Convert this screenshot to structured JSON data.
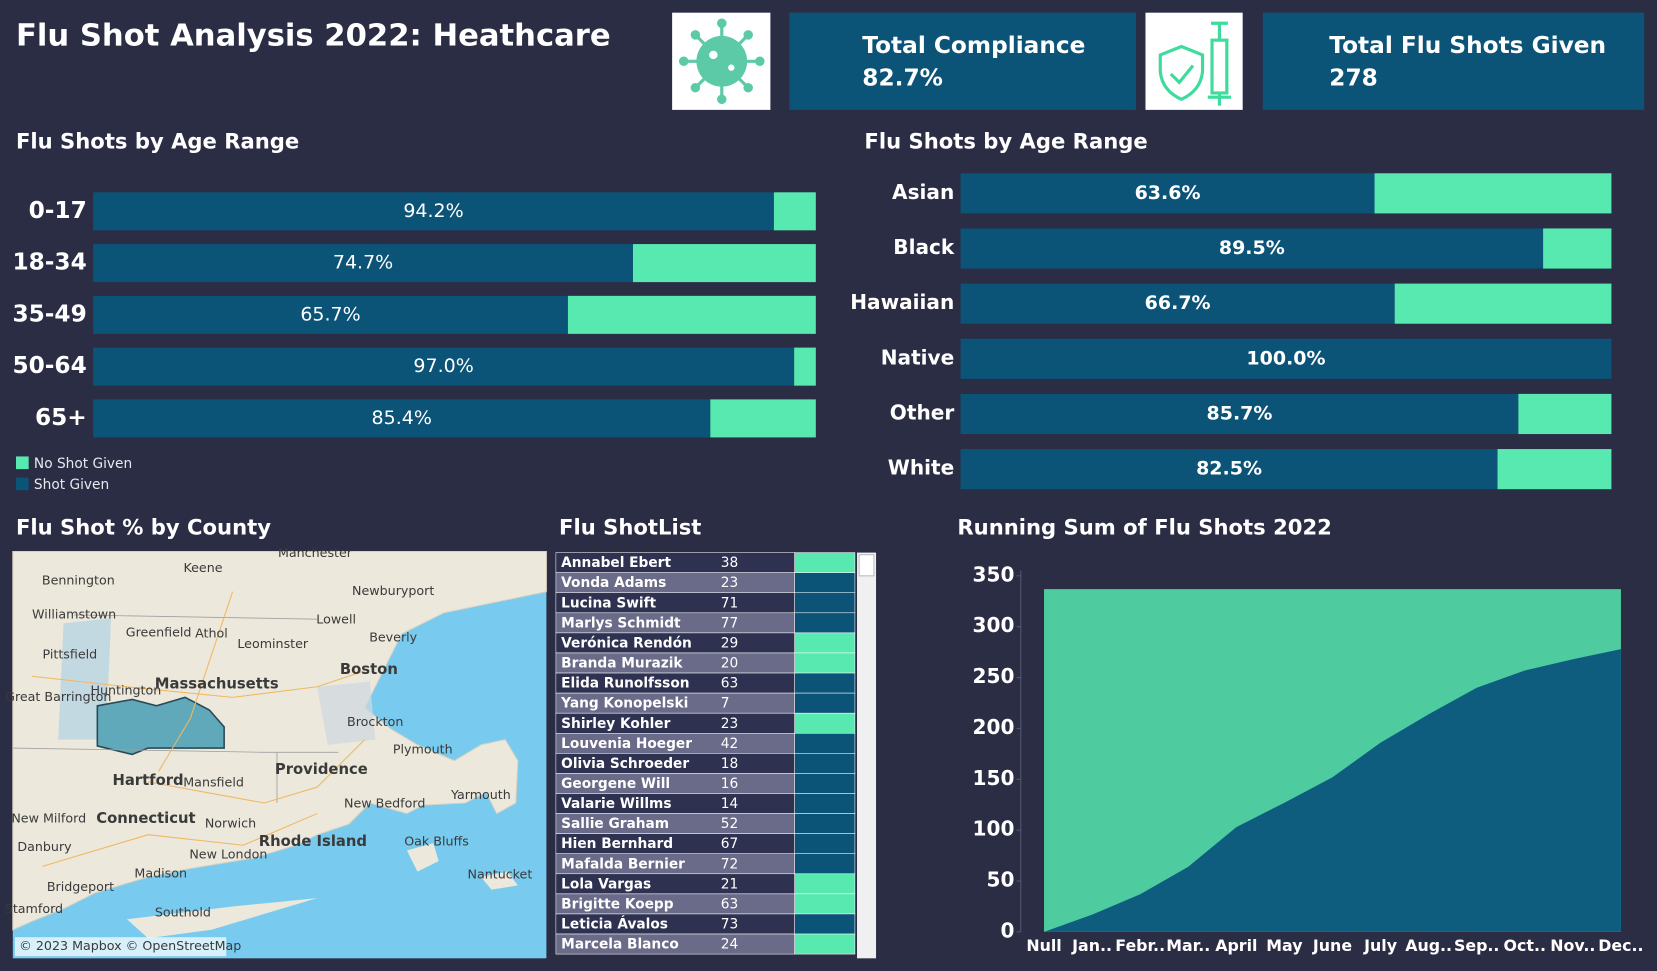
{
  "header": {
    "title": "Flu Shot Analysis 2022: Heathcare"
  },
  "kpis": [
    {
      "label": "Total Compliance",
      "value": "82.7%"
    },
    {
      "label": "Total Flu Shots Given",
      "value": "278"
    }
  ],
  "chart_data": [
    {
      "type": "bar",
      "orientation": "horizontal",
      "stacked": true,
      "title": "Flu Shots by Age Range",
      "categories": [
        "0-17",
        "18-34",
        "35-49",
        "50-64",
        "65+"
      ],
      "series": [
        {
          "name": "Shot Given",
          "color": "#0b5377",
          "values": [
            94.2,
            74.7,
            65.7,
            97.0,
            85.4
          ],
          "value_labels": [
            "94.2%",
            "74.7%",
            "65.7%",
            "97.0%",
            "85.4%"
          ]
        },
        {
          "name": "No Shot Given",
          "color": "#57e9b0",
          "values": [
            5.8,
            25.3,
            34.3,
            3.0,
            14.6
          ]
        }
      ],
      "xlim": [
        0,
        100
      ],
      "legend": "bottom-left"
    },
    {
      "type": "bar",
      "orientation": "horizontal",
      "stacked": true,
      "title": "Flu Shots by Age Range",
      "categories": [
        "Asian",
        "Black",
        "Hawaiian",
        "Native",
        "Other",
        "White"
      ],
      "series": [
        {
          "color": "#0b5377",
          "values": [
            63.6,
            89.5,
            66.7,
            100.0,
            85.7,
            82.5
          ],
          "value_labels": [
            "63.6%",
            "89.5%",
            "66.7%",
            "100.0%",
            "85.7%",
            "82.5%"
          ]
        },
        {
          "color": "#57e9b0",
          "values": [
            36.4,
            10.5,
            33.3,
            0,
            14.3,
            17.5
          ]
        }
      ],
      "xlim": [
        0,
        100
      ]
    },
    {
      "type": "area",
      "title": "Running Sum of Flu Shots 2022",
      "categories": [
        "Null",
        "Jan..",
        "Febr..",
        "Mar..",
        "April",
        "May",
        "June",
        "July",
        "Aug..",
        "Sep..",
        "Oct..",
        "Nov..",
        "Dec.."
      ],
      "series": [
        {
          "color": "#4ecc9f",
          "values": [
            337,
            337,
            337,
            337,
            337,
            337,
            337,
            337,
            337,
            337,
            337,
            337,
            337
          ]
        },
        {
          "color": "#0f5d7e",
          "values": [
            0,
            17,
            37,
            64,
            103,
            127,
            152,
            186,
            214,
            240,
            257,
            268,
            278
          ]
        }
      ],
      "ylim": [
        0,
        350
      ],
      "yticks": [
        0,
        50,
        100,
        150,
        200,
        250,
        300,
        350
      ]
    }
  ],
  "map": {
    "title": "Flu Shot % by County",
    "labels": [
      "Manchester",
      "Keene",
      "Bennington",
      "Newburyport",
      "Williamstown",
      "Lowell",
      "Greenfield",
      "Athol",
      "Leominster",
      "Beverly",
      "Pittsfield",
      "Boston",
      "Huntington",
      "Massachusetts",
      "Great Barrington",
      "Brockton",
      "Plymouth",
      "Providence",
      "Hartford",
      "Mansfield",
      "Yarmouth",
      "New Bedford",
      "New Milford",
      "Connecticut",
      "Norwich",
      "Rhode Island",
      "Oak Bluffs",
      "Danbury",
      "New London",
      "Nantucket",
      "Madison",
      "Bridgeport",
      "Southold",
      "Stamford"
    ],
    "attribution": "© 2023 Mapbox © OpenStreetMap"
  },
  "table": {
    "title": "Flu ShotList",
    "rows": [
      [
        "Annabel Ebert",
        38
      ],
      [
        "Vonda Adams",
        23
      ],
      [
        "Lucina Swift",
        71
      ],
      [
        "Marlys Schmidt",
        77
      ],
      [
        "Verónica Rendón",
        29
      ],
      [
        "Branda Murazik",
        20
      ],
      [
        "Elida Runolfsson",
        63
      ],
      [
        "Yang Konopelski",
        7
      ],
      [
        "Shirley Kohler",
        23
      ],
      [
        "Louvenia Hoeger",
        42
      ],
      [
        "Olivia Schroeder",
        18
      ],
      [
        "Georgene Will",
        16
      ],
      [
        "Valarie Willms",
        14
      ],
      [
        "Sallie Graham",
        52
      ],
      [
        "Hien Bernhard",
        67
      ],
      [
        "Mafalda Bernier",
        72
      ],
      [
        "Lola Vargas",
        21
      ],
      [
        "Brigitte Koepp",
        63
      ],
      [
        "Leticia Ávalos",
        73
      ],
      [
        "Marcela Blanco",
        24
      ]
    ],
    "row_colors": [
      "#57e9b0",
      "#0b5377",
      "#0b5377",
      "#0b5377",
      "#57e9b0",
      "#57e9b0",
      "#0b5377",
      "#0b5377",
      "#57e9b0",
      "#0b5377",
      "#0b5377",
      "#0b5377",
      "#0b5377",
      "#0b5377",
      "#0b5377",
      "#0b5377",
      "#57e9b0",
      "#57e9b0",
      "#0b5377",
      "#57e9b0"
    ]
  }
}
